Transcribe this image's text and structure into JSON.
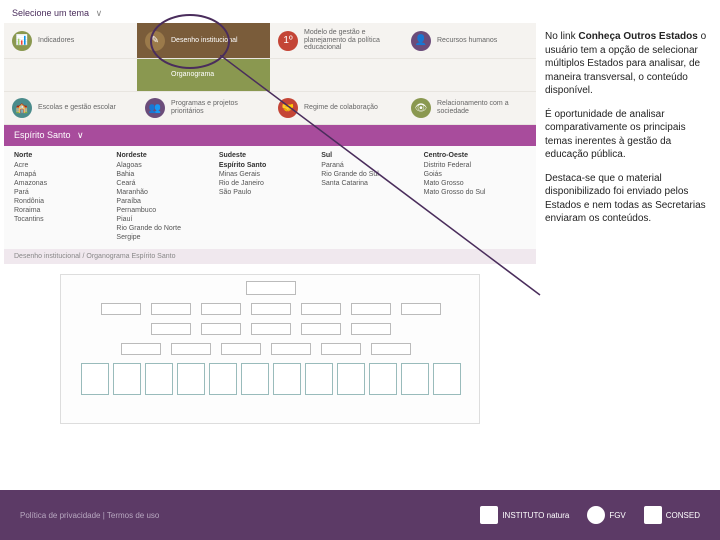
{
  "theme_select": {
    "label": "Selecione um tema",
    "chevron": "∨"
  },
  "nav": [
    {
      "icon_class": "ic-green",
      "glyph": "📊",
      "label": "Indicadores",
      "interactable": true
    },
    {
      "icon_class": "ic-brown",
      "glyph": "✎",
      "label": "Desenho institucional",
      "interactable": true,
      "active": true
    },
    {
      "icon_class": "ic-red",
      "glyph": "1º",
      "label": "Modelo de gestão e planejamento da política educacional",
      "interactable": true
    },
    {
      "icon_class": "ic-purple",
      "glyph": "👤",
      "label": "Recursos humanos",
      "interactable": true
    },
    {
      "icon_class": "",
      "glyph": "",
      "label": "",
      "interactable": false
    },
    {
      "icon_class": "ic-green",
      "glyph": "",
      "label": "Organograma",
      "interactable": true,
      "sub_active": true
    },
    {
      "icon_class": "",
      "glyph": "",
      "label": "",
      "interactable": false
    },
    {
      "icon_class": "",
      "glyph": "",
      "label": "",
      "interactable": false
    },
    {
      "icon_class": "ic-teal",
      "glyph": "🏫",
      "label": "Escolas e gestão escolar",
      "interactable": true
    },
    {
      "icon_class": "ic-purple",
      "glyph": "👥",
      "label": "Programas e projetos prioritários",
      "interactable": true
    },
    {
      "icon_class": "ic-red",
      "glyph": "🤝",
      "label": "Regime de colaboração",
      "interactable": true
    },
    {
      "icon_class": "ic-green",
      "glyph": "👁",
      "label": "Relacionamento com a sociedade",
      "interactable": true
    }
  ],
  "state_bar": {
    "label": "Espírito Santo",
    "chevron": "∨"
  },
  "regions": [
    {
      "hdr": "Norte",
      "items": [
        "Acre",
        "Amapá",
        "Amazonas",
        "Pará",
        "Rondônia",
        "Roraima",
        "Tocantins"
      ]
    },
    {
      "hdr": "Nordeste",
      "items": [
        "Alagoas",
        "Bahia",
        "Ceará",
        "Maranhão",
        "Paraíba",
        "Pernambuco",
        "Piauí",
        "Rio Grande do Norte",
        "Sergipe"
      ]
    },
    {
      "hdr": "Sudeste",
      "items": [
        "Espírito Santo",
        "Minas Gerais",
        "Rio de Janeiro",
        "São Paulo"
      ],
      "selected": 0
    },
    {
      "hdr": "Sul",
      "items": [
        "Paraná",
        "Rio Grande do Sul",
        "Santa Catarina"
      ]
    },
    {
      "hdr": "Centro-Oeste",
      "items": [
        "Distrito Federal",
        "Goiás",
        "Mato Grosso",
        "Mato Grosso do Sul"
      ]
    }
  ],
  "breadcrumb": "Desenho institucional / Organograma   Espírito Santo",
  "callout": {
    "p1_pre": "No link ",
    "p1_bold": "Conheça Outros Estados",
    "p1_post": " o usuário tem a opção de selecionar múltiplos Estados para analisar, de maneira transversal, o conteúdo disponível.",
    "p2": "É oportunidade de analisar comparativamente os principais temas inerentes à gestão da educação pública.",
    "p3": "Destaca-se que o material disponibilizado foi enviado pelos Estados e nem todas as Secretarias enviaram os conteúdos."
  },
  "footer": {
    "links": "Política de privacidade | Termos de uso",
    "logos": [
      "INSTITUTO natura",
      "FGV",
      "CONSED"
    ]
  },
  "colors": {
    "purple_bar": "#a84c9c",
    "footer_bg": "#5c3a66",
    "highlight": "#4a2d5c"
  }
}
